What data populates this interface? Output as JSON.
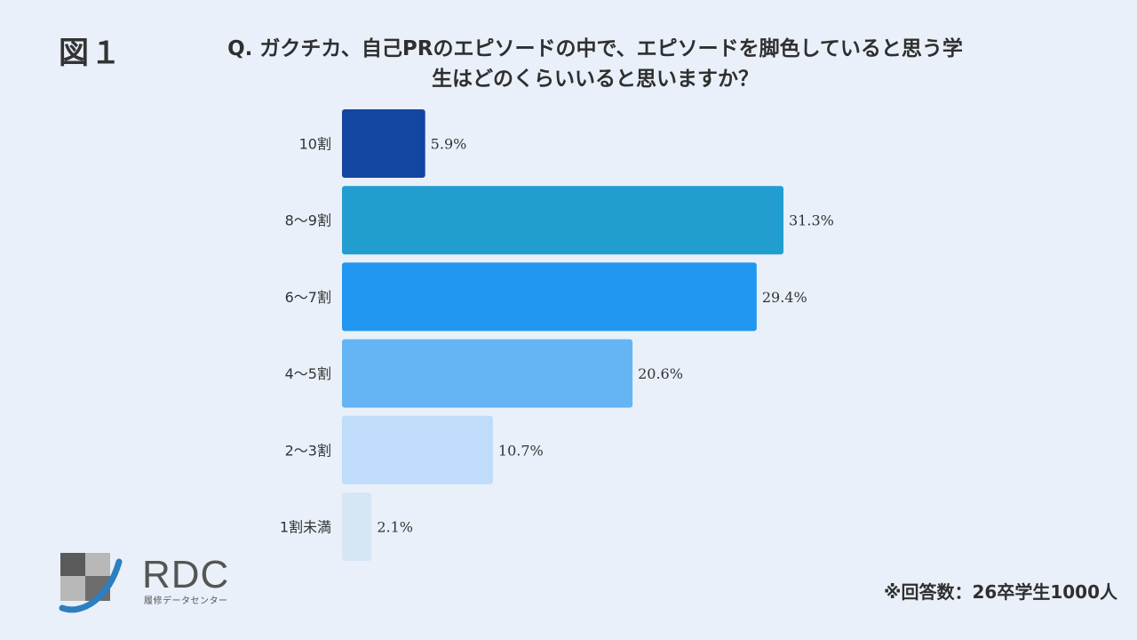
{
  "figure_label": "図１",
  "title_line1": "Q. ガクチカ、自己PRのエピソードの中で、エピソードを脚色していると思う学",
  "title_line2": "生はどのくらいいると思いますか？",
  "footnote": "※回答数：26卒学生1000人",
  "logo": {
    "name": "RDC",
    "subtitle": "履修データセンター",
    "icon": "rdc-logo-icon"
  },
  "chart_data": {
    "type": "bar",
    "orientation": "horizontal",
    "title": "Q. ガクチカ、自己PRのエピソードの中で、エピソードを脚色していると思う学生はどのくらいいると思いますか？",
    "categories": [
      "10割",
      "8～9割",
      "6～7割",
      "4～5割",
      "2～3割",
      "1割未満"
    ],
    "values": [
      5.9,
      31.3,
      29.4,
      20.6,
      10.7,
      2.1
    ],
    "value_labels": [
      "5.9%",
      "31.3%",
      "29.4%",
      "20.6%",
      "10.7%",
      "2.1%"
    ],
    "colors": [
      "#1346a0",
      "#229dd0",
      "#2196f0",
      "#65b5f5",
      "#bfddfa",
      "#d6e6f5"
    ],
    "xlim": [
      0,
      31.3
    ],
    "grid": false
  }
}
